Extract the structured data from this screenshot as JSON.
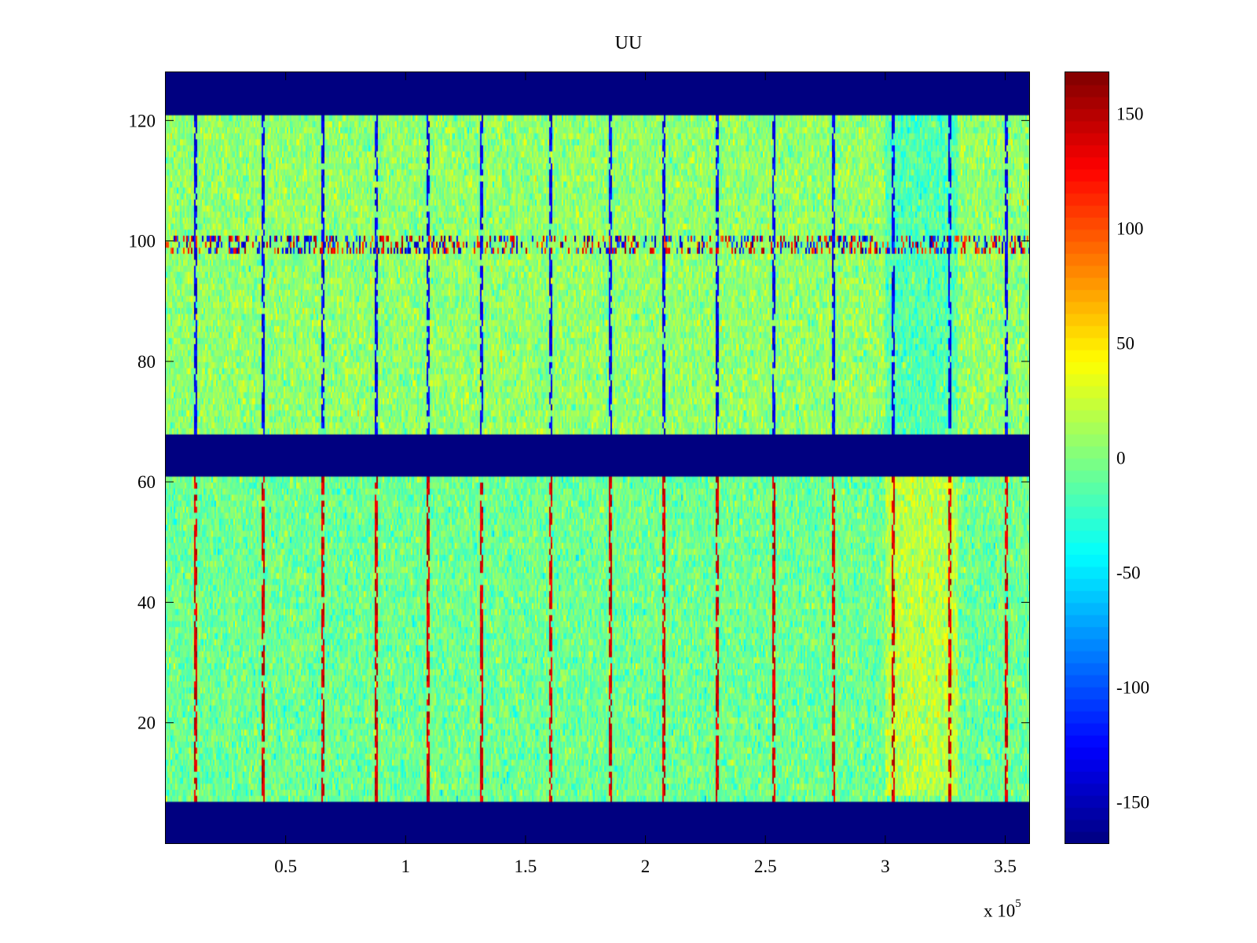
{
  "chart_data": {
    "type": "heatmap",
    "title": "UU",
    "xlabel": "",
    "ylabel": "",
    "x_multiplier_label": "x 10",
    "x_multiplier_exponent": "5",
    "xlim": [
      0,
      360000
    ],
    "ylim": [
      0,
      128
    ],
    "xticks": [
      {
        "value": 50000,
        "label": "0.5"
      },
      {
        "value": 100000,
        "label": "1"
      },
      {
        "value": 150000,
        "label": "1.5"
      },
      {
        "value": 200000,
        "label": "2"
      },
      {
        "value": 250000,
        "label": "2.5"
      },
      {
        "value": 300000,
        "label": "3"
      },
      {
        "value": 350000,
        "label": "3.5"
      }
    ],
    "yticks": [
      {
        "value": 20,
        "label": "20"
      },
      {
        "value": 40,
        "label": "40"
      },
      {
        "value": 60,
        "label": "60"
      },
      {
        "value": 80,
        "label": "80"
      },
      {
        "value": 100,
        "label": "100"
      },
      {
        "value": 120,
        "label": "120"
      }
    ],
    "colormap": "jet",
    "clim": [
      -168,
      168
    ],
    "colorbar_ticks": [
      {
        "value": 150,
        "label": "150"
      },
      {
        "value": 100,
        "label": "100"
      },
      {
        "value": 50,
        "label": "50"
      },
      {
        "value": 0,
        "label": "0"
      },
      {
        "value": -50,
        "label": "-50"
      },
      {
        "value": -100,
        "label": "-100"
      },
      {
        "value": -150,
        "label": "-150"
      }
    ],
    "masked_bands_y": [
      [
        0,
        7
      ],
      [
        61,
        68
      ],
      [
        121,
        128
      ]
    ],
    "masked_value": -168,
    "stripe_row_y": 99.5,
    "vertical_artifact_x": [
      12000,
      40000,
      65000,
      87000,
      109000,
      131000,
      160000,
      185000,
      207000,
      229000,
      253000,
      278000,
      303000,
      326000,
      350000
    ],
    "warm_region": {
      "x": [
        300000,
        330000
      ],
      "y": [
        8,
        61
      ],
      "value": 35
    },
    "cool_region": {
      "x": [
        300000,
        330000
      ],
      "y": [
        68,
        121
      ],
      "value": -35
    },
    "grid": false,
    "legend": "none"
  }
}
